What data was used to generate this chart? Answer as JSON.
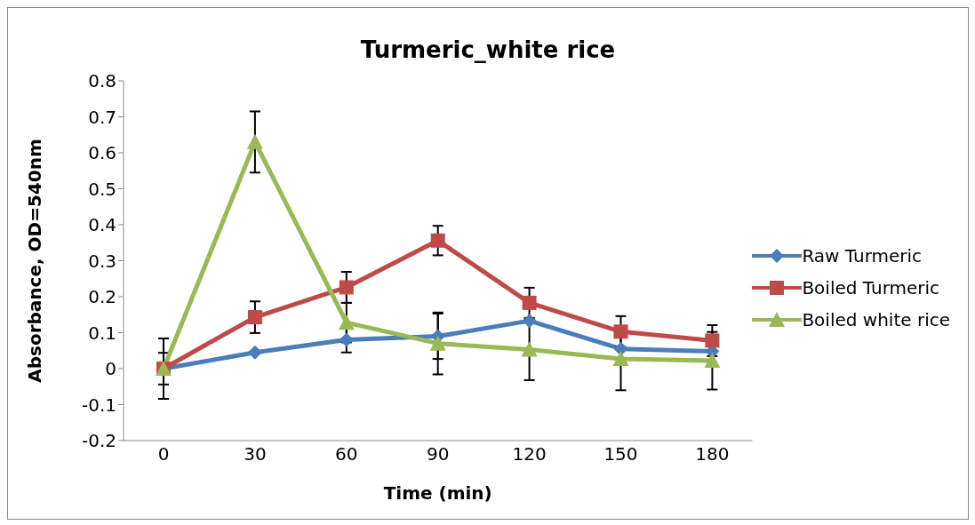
{
  "chart_data": {
    "type": "line",
    "title": "Turmeric_white rice",
    "xlabel": "Time (min)",
    "ylabel": "Absorbance, OD=540nm",
    "categories": [
      "0",
      "30",
      "60",
      "90",
      "120",
      "150",
      "180"
    ],
    "ylim": [
      -0.2,
      0.8
    ],
    "yticks": [
      -0.2,
      -0.1,
      0,
      0.1,
      0.2,
      0.3,
      0.4,
      0.5,
      0.6,
      0.7,
      0.8
    ],
    "grid": false,
    "legend": "right",
    "series": [
      {
        "name": "Raw Turmeric",
        "color": "#4a7ebb",
        "marker": "diamond",
        "values": [
          0,
          0.045,
          0.08,
          0.09,
          0.133,
          0.055,
          0.048
        ],
        "errors": [
          0.044,
          null,
          0.035,
          0.063,
          null,
          null,
          null
        ]
      },
      {
        "name": "Boiled Turmeric",
        "color": "#be4b48",
        "marker": "square",
        "values": [
          0,
          0.143,
          0.226,
          0.356,
          0.183,
          0.103,
          0.078
        ],
        "errors": [
          null,
          0.044,
          0.043,
          0.041,
          0.042,
          0.043,
          0.043
        ]
      },
      {
        "name": "Boiled white rice",
        "color": "#98b954",
        "marker": "triangle",
        "values": [
          0,
          0.63,
          0.128,
          0.07,
          0.053,
          0.027,
          0.022
        ],
        "errors": [
          0.084,
          0.085,
          0.055,
          0.086,
          0.085,
          0.087,
          0.08
        ]
      }
    ]
  }
}
